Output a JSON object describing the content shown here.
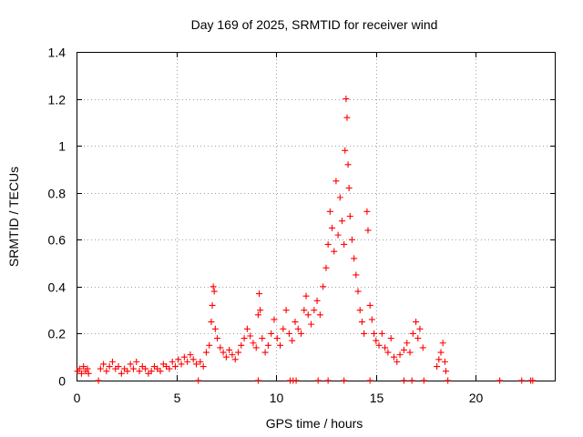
{
  "chart_data": {
    "type": "scatter",
    "title": "Day 169 of 2025, SRMTID for receiver wind",
    "xlabel": "GPS time / hours",
    "ylabel": "SRMTID / TECUs",
    "xlim": [
      0,
      24
    ],
    "ylim": [
      0,
      1.4
    ],
    "grid": true,
    "x_ticks": [
      0,
      5,
      10,
      15,
      20
    ],
    "x_tick_labels": [
      "0",
      "5",
      "10",
      "15",
      "20"
    ],
    "y_ticks": [
      0,
      0.2,
      0.4,
      0.6,
      0.8,
      1.0,
      1.2,
      1.4
    ],
    "y_tick_labels": [
      "0",
      "0.2",
      "0.4",
      "0.6",
      "0.8",
      "1",
      "1.2",
      "1.4"
    ],
    "marker": "+",
    "color": "#ff0000",
    "series": [
      {
        "name": "SRMTID",
        "points": [
          [
            0.05,
            0.04
          ],
          [
            0.15,
            0.05
          ],
          [
            0.25,
            0.03
          ],
          [
            0.35,
            0.06
          ],
          [
            0.45,
            0.04
          ],
          [
            0.55,
            0.05
          ],
          [
            0.6,
            0.03
          ],
          [
            1.2,
            0.05
          ],
          [
            1.35,
            0.07
          ],
          [
            1.5,
            0.04
          ],
          [
            1.65,
            0.06
          ],
          [
            1.8,
            0.08
          ],
          [
            1.95,
            0.05
          ],
          [
            2.1,
            0.06
          ],
          [
            2.25,
            0.03
          ],
          [
            2.4,
            0.05
          ],
          [
            2.55,
            0.04
          ],
          [
            2.7,
            0.07
          ],
          [
            2.85,
            0.05
          ],
          [
            3.0,
            0.08
          ],
          [
            3.15,
            0.04
          ],
          [
            3.3,
            0.06
          ],
          [
            3.45,
            0.05
          ],
          [
            3.6,
            0.03
          ],
          [
            3.75,
            0.04
          ],
          [
            3.9,
            0.06
          ],
          [
            4.05,
            0.05
          ],
          [
            4.2,
            0.04
          ],
          [
            4.35,
            0.07
          ],
          [
            4.5,
            0.06
          ],
          [
            4.65,
            0.05
          ],
          [
            4.8,
            0.08
          ],
          [
            4.95,
            0.06
          ],
          [
            5.1,
            0.09
          ],
          [
            5.25,
            0.07
          ],
          [
            5.4,
            0.1
          ],
          [
            5.55,
            0.08
          ],
          [
            5.7,
            0.11
          ],
          [
            5.85,
            0.09
          ],
          [
            6.0,
            0.07
          ],
          [
            6.2,
            0.08
          ],
          [
            6.35,
            0.06
          ],
          [
            6.5,
            0.12
          ],
          [
            6.65,
            0.15
          ],
          [
            6.75,
            0.25
          ],
          [
            6.8,
            0.32
          ],
          [
            6.85,
            0.4
          ],
          [
            6.9,
            0.38
          ],
          [
            6.95,
            0.22
          ],
          [
            7.05,
            0.18
          ],
          [
            7.2,
            0.14
          ],
          [
            7.35,
            0.12
          ],
          [
            7.5,
            0.1
          ],
          [
            7.65,
            0.13
          ],
          [
            7.8,
            0.11
          ],
          [
            7.95,
            0.09
          ],
          [
            8.1,
            0.12
          ],
          [
            8.25,
            0.15
          ],
          [
            8.4,
            0.18
          ],
          [
            8.55,
            0.22
          ],
          [
            8.7,
            0.19
          ],
          [
            8.85,
            0.16
          ],
          [
            9.0,
            0.14
          ],
          [
            9.1,
            0.28
          ],
          [
            9.15,
            0.37
          ],
          [
            9.2,
            0.3
          ],
          [
            9.3,
            0.18
          ],
          [
            9.45,
            0.12
          ],
          [
            9.6,
            0.15
          ],
          [
            9.75,
            0.2
          ],
          [
            9.9,
            0.26
          ],
          [
            10.05,
            0.18
          ],
          [
            10.2,
            0.15
          ],
          [
            10.35,
            0.22
          ],
          [
            10.5,
            0.3
          ],
          [
            10.65,
            0.2
          ],
          [
            10.8,
            0.17
          ],
          [
            10.95,
            0.25
          ],
          [
            11.1,
            0.22
          ],
          [
            11.25,
            0.2
          ],
          [
            11.4,
            0.3
          ],
          [
            11.5,
            0.36
          ],
          [
            11.6,
            0.28
          ],
          [
            11.75,
            0.24
          ],
          [
            11.9,
            0.3
          ],
          [
            12.05,
            0.34
          ],
          [
            12.2,
            0.28
          ],
          [
            12.35,
            0.4
          ],
          [
            12.5,
            0.48
          ],
          [
            12.6,
            0.58
          ],
          [
            12.7,
            0.72
          ],
          [
            12.8,
            0.65
          ],
          [
            12.9,
            0.55
          ],
          [
            13.0,
            0.85
          ],
          [
            13.1,
            0.62
          ],
          [
            13.2,
            0.78
          ],
          [
            13.3,
            0.68
          ],
          [
            13.4,
            0.58
          ],
          [
            13.45,
            0.98
          ],
          [
            13.5,
            1.2
          ],
          [
            13.55,
            1.12
          ],
          [
            13.6,
            0.92
          ],
          [
            13.65,
            0.82
          ],
          [
            13.7,
            0.7
          ],
          [
            13.8,
            0.6
          ],
          [
            13.9,
            0.52
          ],
          [
            14.0,
            0.45
          ],
          [
            14.1,
            0.38
          ],
          [
            14.2,
            0.3
          ],
          [
            14.3,
            0.25
          ],
          [
            14.4,
            0.2
          ],
          [
            14.55,
            0.72
          ],
          [
            14.6,
            0.64
          ],
          [
            14.7,
            0.32
          ],
          [
            14.8,
            0.26
          ],
          [
            14.9,
            0.2
          ],
          [
            15.0,
            0.17
          ],
          [
            15.15,
            0.15
          ],
          [
            15.3,
            0.2
          ],
          [
            15.45,
            0.14
          ],
          [
            15.6,
            0.12
          ],
          [
            15.75,
            0.18
          ],
          [
            15.9,
            0.1
          ],
          [
            16.05,
            0.08
          ],
          [
            16.2,
            0.11
          ],
          [
            16.4,
            0.13
          ],
          [
            16.55,
            0.16
          ],
          [
            16.7,
            0.12
          ],
          [
            16.85,
            0.2
          ],
          [
            17.0,
            0.25
          ],
          [
            17.1,
            0.18
          ],
          [
            17.2,
            0.22
          ],
          [
            17.35,
            0.14
          ],
          [
            18.05,
            0.06
          ],
          [
            18.15,
            0.09
          ],
          [
            18.25,
            0.12
          ],
          [
            18.35,
            0.16
          ],
          [
            18.45,
            0.08
          ],
          [
            18.5,
            0.04
          ],
          [
            1.1,
            0.0
          ],
          [
            6.1,
            0.0
          ],
          [
            9.1,
            0.0
          ],
          [
            10.7,
            0.0
          ],
          [
            10.85,
            0.0
          ],
          [
            11.0,
            0.0
          ],
          [
            12.1,
            0.0
          ],
          [
            12.6,
            0.0
          ],
          [
            13.4,
            0.0
          ],
          [
            14.7,
            0.0
          ],
          [
            16.4,
            0.0
          ],
          [
            16.8,
            0.0
          ],
          [
            17.4,
            0.0
          ],
          [
            18.6,
            0.0
          ],
          [
            21.2,
            0.0
          ],
          [
            22.3,
            0.0
          ],
          [
            22.75,
            0.0
          ],
          [
            22.85,
            0.0
          ]
        ]
      }
    ]
  }
}
